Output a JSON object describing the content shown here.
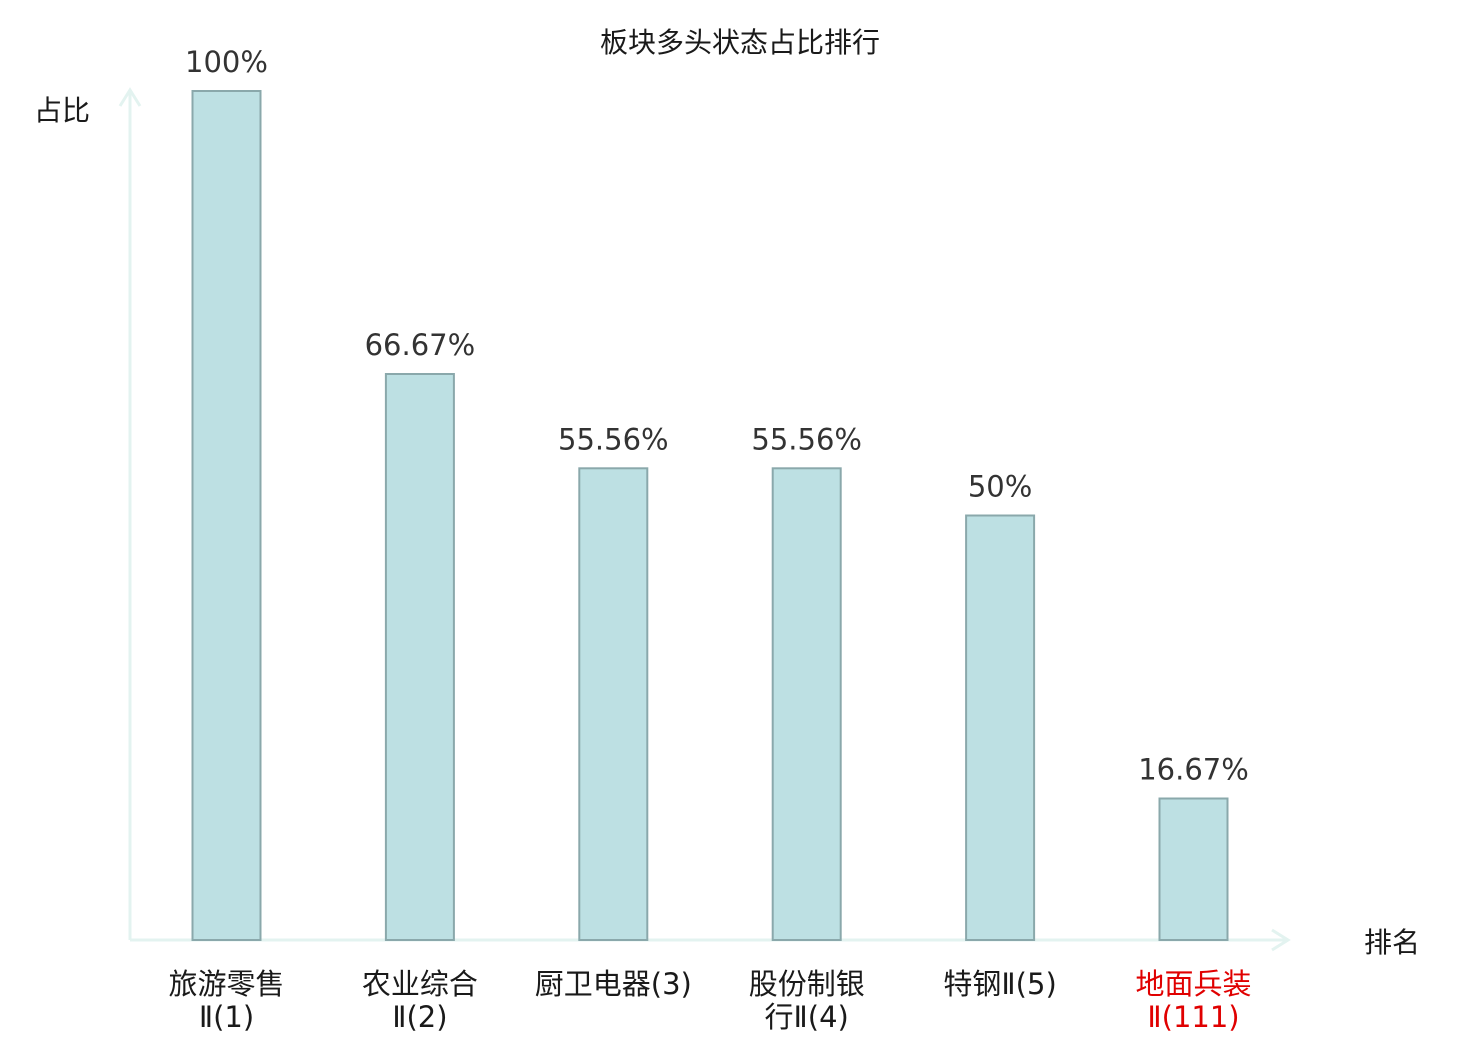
{
  "chart_data": {
    "type": "bar",
    "title": "板块多头状态占比排行",
    "ylabel": "占比",
    "xlabel": "排名",
    "ylim": [
      0,
      100
    ],
    "value_suffix": "%",
    "grid": false,
    "legend": "none",
    "categories": [
      {
        "lines": [
          "旅游零售",
          "Ⅱ(1)"
        ],
        "highlight": false
      },
      {
        "lines": [
          "农业综合",
          "Ⅱ(2)"
        ],
        "highlight": false
      },
      {
        "lines": [
          "厨卫电器(3)"
        ],
        "highlight": false
      },
      {
        "lines": [
          "股份制银",
          "行Ⅱ(4)"
        ],
        "highlight": false
      },
      {
        "lines": [
          "特钢Ⅱ(5)"
        ],
        "highlight": false
      },
      {
        "lines": [
          "地面兵装",
          "Ⅱ(111)"
        ],
        "highlight": true
      }
    ],
    "values": [
      100,
      66.67,
      55.56,
      55.56,
      50,
      16.67
    ],
    "value_labels": [
      "100%",
      "66.67%",
      "55.56%",
      "55.56%",
      "50%",
      "16.67%"
    ]
  },
  "colors": {
    "bar_fill": "#bde0e3",
    "bar_stroke": "#8aa8ab",
    "axis": "#e3f3f0",
    "title_text": "#1a1a1a",
    "value_text": "#333333",
    "category_text": "#1a1a1a",
    "highlight_text": "#e00000"
  }
}
